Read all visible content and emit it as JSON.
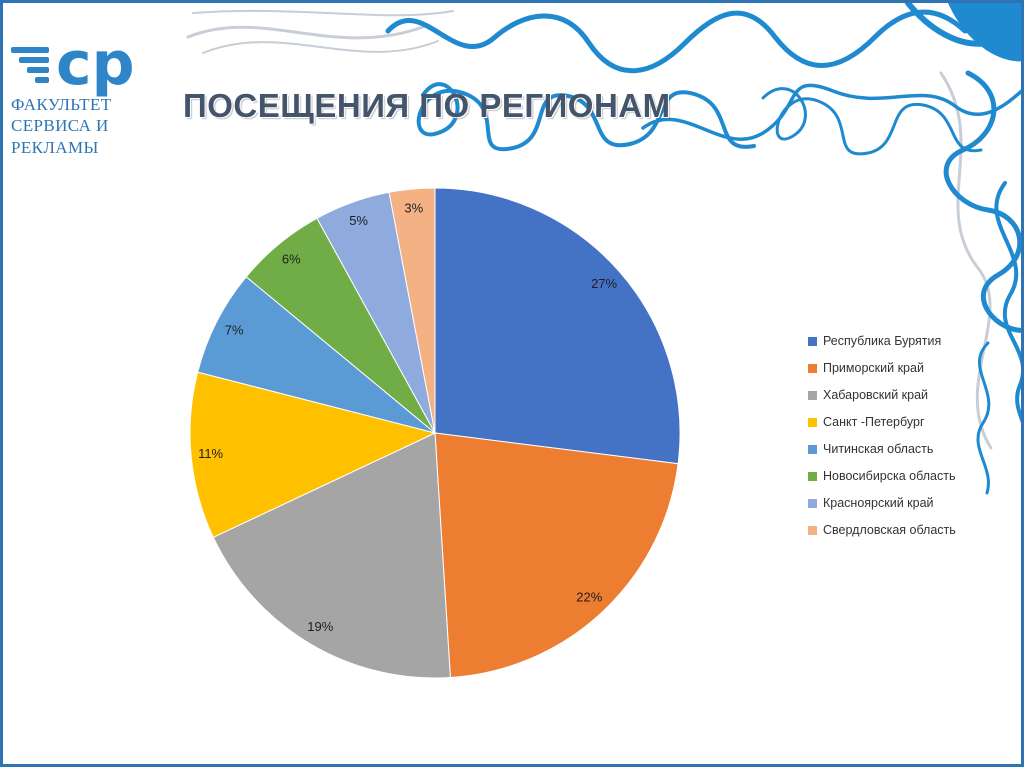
{
  "logo": {
    "mark": "ср",
    "line1": "ФАКУЛЬТЕТ",
    "line2": "СЕРВИСА И РЕКЛАМЫ"
  },
  "colors": {
    "slide_border": "#2E74B5",
    "title_text": "#44546A",
    "logo_blue": "#2E86C8",
    "logo_text_blue": "#2E75B6",
    "scribble_blue": "#1F8AD0",
    "scribble_gray": "#C8CED8"
  },
  "chart_data": {
    "type": "pie",
    "title": "ПОСЕЩЕНИЯ ПО РЕГИОНАМ",
    "legend_position": "right",
    "start_angle_deg": 0,
    "direction": "clockwise",
    "categories": [
      "Республика Бурятия",
      "Приморский край",
      "Хабаровский край",
      "Санкт -Петербург",
      "Читинская область",
      "Новосибирска область",
      "Красноярский край",
      "Свердловская область"
    ],
    "values": [
      27,
      22,
      19,
      11,
      7,
      6,
      5,
      3
    ],
    "labels": [
      "27%",
      "22%",
      "19%",
      "11%",
      "7%",
      "6%",
      "5%",
      "3%"
    ],
    "colors": [
      "#4472C4",
      "#ED7D31",
      "#A5A5A5",
      "#FFC000",
      "#5B9BD5",
      "#70AD47",
      "#8FAADC",
      "#F4B183"
    ]
  }
}
